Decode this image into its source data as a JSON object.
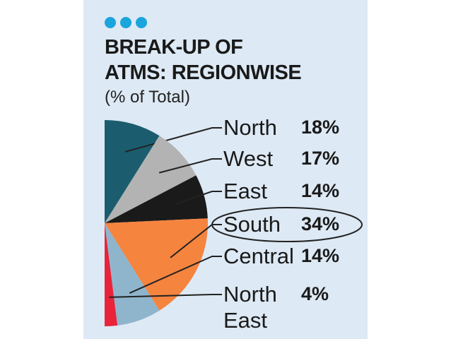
{
  "chart_data": {
    "type": "pie",
    "title": [
      "BREAK-UP OF",
      "ATMS: REGIONWISE"
    ],
    "subtitle": "(% of Total)",
    "categories": [
      "North",
      "West",
      "East",
      "South",
      "Central",
      "North East"
    ],
    "values": [
      18,
      17,
      14,
      34,
      14,
      4
    ],
    "value_labels": [
      "18%",
      "17%",
      "14%",
      "34%",
      "14%",
      "4%"
    ],
    "colors": [
      "#1b5d6f",
      "#b3b3b3",
      "#1a1a1a",
      "#f5843f",
      "#8fb5cc",
      "#e8233a"
    ]
  }
}
